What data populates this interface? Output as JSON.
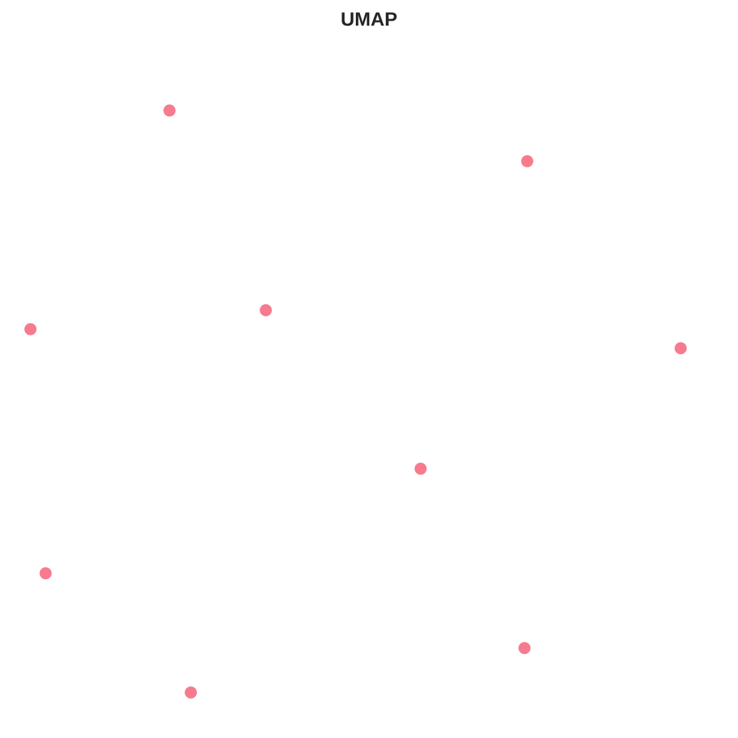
{
  "chart_data": {
    "type": "scatter",
    "title": "UMAP",
    "xlabel": "",
    "ylabel": "",
    "grid": false,
    "axes_visible": false,
    "xlim": [
      0,
      10
    ],
    "ylim": [
      0,
      10
    ],
    "marker_color": "#f77b8e",
    "points": [
      {
        "x": 2.1,
        "y": 9.1
      },
      {
        "x": 7.3,
        "y": 8.3
      },
      {
        "x": 3.5,
        "y": 5.95
      },
      {
        "x": 0.08,
        "y": 5.65
      },
      {
        "x": 9.53,
        "y": 5.35
      },
      {
        "x": 5.75,
        "y": 3.45
      },
      {
        "x": 0.3,
        "y": 1.8
      },
      {
        "x": 7.26,
        "y": 0.62
      },
      {
        "x": 2.41,
        "y": -0.08
      }
    ]
  },
  "background_color": "#ffffff"
}
